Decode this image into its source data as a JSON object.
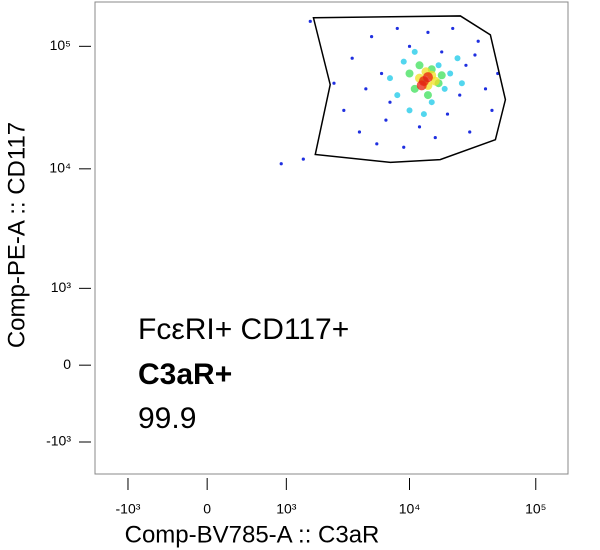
{
  "chart_data": {
    "type": "scatter",
    "scale": "biexponential",
    "x_label": "Comp-BV785-A :: C3aR",
    "y_label": "Comp-PE-A :: CD117",
    "xlim": [
      -1900,
      180000
    ],
    "ylim": [
      -1900,
      230000
    ],
    "xticks": [
      {
        "value": -1000,
        "label": "-10³"
      },
      0,
      {
        "value": 1000,
        "label": "10³"
      },
      {
        "value": 10000,
        "label": "10⁴"
      },
      {
        "value": 100000,
        "label": "10⁵"
      }
    ],
    "yticks": [
      {
        "value": 100000,
        "label": "10⁵"
      },
      {
        "value": 10000,
        "label": "10⁴"
      },
      {
        "value": 1000,
        "label": "10³"
      },
      0,
      {
        "value": -1000,
        "label": "-10³"
      }
    ],
    "series": [
      {
        "color": "#1f2fe0",
        "x": [
          2500,
          3000,
          3500,
          4000,
          5000,
          5500,
          6000,
          7000,
          8000,
          9000,
          10000,
          12000,
          14000,
          16000,
          18000,
          20000,
          22000,
          25000,
          28000,
          30000,
          35000,
          40000,
          45000,
          50000,
          1400,
          900,
          1600,
          4500,
          6500,
          33000
        ],
        "y": [
          50000,
          30000,
          80000,
          20000,
          120000,
          16000,
          60000,
          35000,
          140000,
          15000,
          100000,
          22000,
          130000,
          18000,
          90000,
          28000,
          140000,
          40000,
          70000,
          20000,
          110000,
          45000,
          30000,
          60000,
          12000,
          11000,
          160000,
          45000,
          25000,
          85000
        ]
      },
      {
        "color": "#18c8e8",
        "x": [
          7000,
          8000,
          9000,
          10000,
          11000,
          15000,
          17000,
          19000,
          21000,
          24000,
          13000,
          26000
        ],
        "y": [
          55000,
          40000,
          75000,
          30000,
          90000,
          35000,
          70000,
          45000,
          60000,
          80000,
          28000,
          50000
        ]
      },
      {
        "color": "#3ee05a",
        "x": [
          10000,
          11000,
          12000,
          14000,
          15000,
          17000,
          18000,
          13000
        ],
        "y": [
          60000,
          45000,
          70000,
          40000,
          65000,
          50000,
          58000,
          52000
        ]
      },
      {
        "color": "#f0e020",
        "x": [
          12000,
          14000,
          15000,
          13500,
          16000
        ],
        "y": [
          55000,
          48000,
          58000,
          62000,
          52000
        ]
      },
      {
        "color": "#e82010",
        "x": [
          13000,
          14000,
          12500
        ],
        "y": [
          52000,
          56000,
          48000
        ]
      }
    ],
    "gate": {
      "name": "FcεRI+ CD117+",
      "subset": "C3aR+",
      "percent": "99.9",
      "x": [
        1700,
        25300,
        43700,
        57500,
        47900,
        17500,
        7050,
        1760,
        2330
      ],
      "y": [
        171000,
        177000,
        124000,
        36700,
        17300,
        11900,
        11300,
        13100,
        48700
      ]
    }
  }
}
